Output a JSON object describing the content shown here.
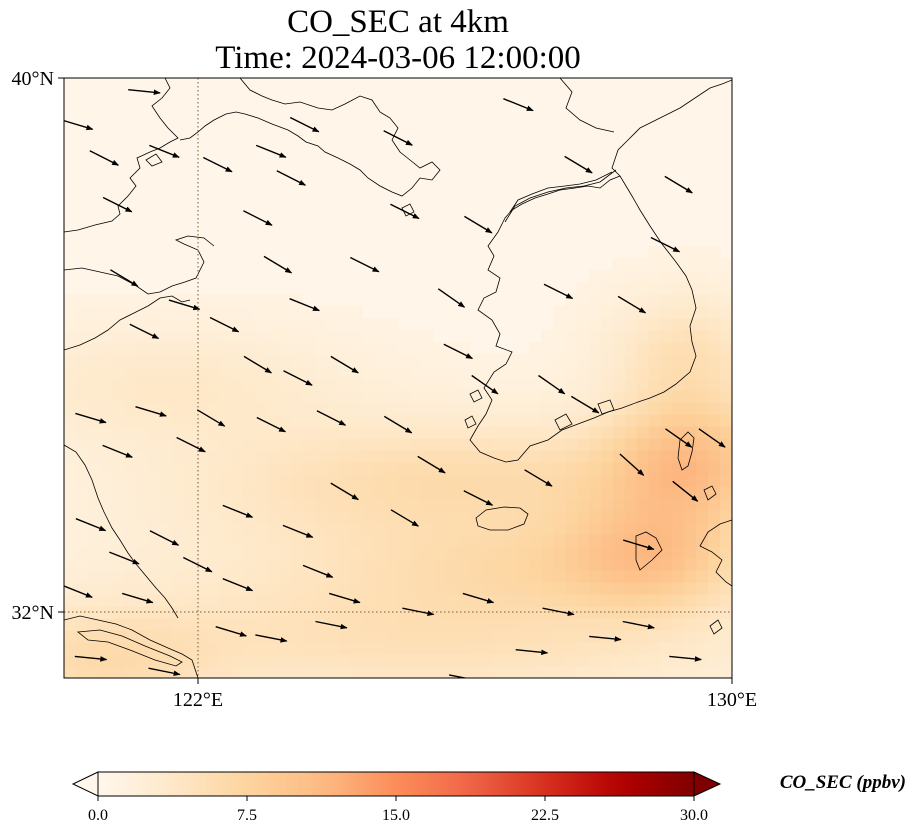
{
  "title": {
    "line1": "CO_SEC at 4km",
    "line2": "Time: 2024-03-06 12:00:00"
  },
  "map": {
    "lon_range": [
      120,
      130
    ],
    "lat_range": [
      31,
      40
    ],
    "lon_ticks": [
      {
        "value": 122,
        "label": "122°E"
      },
      {
        "value": 130,
        "label": "130°E"
      }
    ],
    "lat_ticks": [
      {
        "value": 40,
        "label": "40°N"
      },
      {
        "value": 32,
        "label": "32°N"
      }
    ],
    "gridlines": "dotted",
    "coastlines": true,
    "wind_vectors": true
  },
  "colorbar": {
    "label": "CO_SEC (ppbv)",
    "cmap": "OrRd",
    "min": 0.0,
    "max": 30.0,
    "extend": "both",
    "ticks": [
      "0.0",
      "7.5",
      "15.0",
      "22.5",
      "30.0"
    ],
    "colors": [
      "#fff7ec",
      "#fee8c8",
      "#fdd49e",
      "#fdbb84",
      "#fc8d59",
      "#ef6548",
      "#d7301f",
      "#b30000",
      "#7f0000"
    ]
  },
  "chart_data": {
    "type": "heatmap",
    "title": "CO_SEC at 4km",
    "subtitle": "Time: 2024-03-06 12:00:00",
    "xlabel": "",
    "ylabel": "",
    "xlim": [
      120,
      130
    ],
    "ylim": [
      31,
      40
    ],
    "x_ticks": [
      "122°E",
      "130°E"
    ],
    "y_ticks": [
      "32°N",
      "40°N"
    ],
    "colorbar_label": "CO_SEC (ppbv)",
    "colorbar_range": [
      0,
      30
    ],
    "background_value_ppbv": 1.0,
    "plumes": [
      {
        "lon": 129.4,
        "lat": 34.3,
        "value_ppbv": 9,
        "spread_lon": 0.9,
        "spread_lat": 0.7
      },
      {
        "lon": 128.8,
        "lat": 32.9,
        "value_ppbv": 7,
        "spread_lon": 0.9,
        "spread_lat": 0.6
      },
      {
        "lon": 129.3,
        "lat": 35.9,
        "value_ppbv": 5,
        "spread_lon": 0.8,
        "spread_lat": 0.6
      },
      {
        "lon": 126.5,
        "lat": 34.0,
        "value_ppbv": 5,
        "spread_lon": 2.5,
        "spread_lat": 0.6
      },
      {
        "lon": 127.3,
        "lat": 32.7,
        "value_ppbv": 4.5,
        "spread_lon": 2.0,
        "spread_lat": 0.5
      },
      {
        "lon": 125.5,
        "lat": 31.6,
        "value_ppbv": 5,
        "spread_lon": 3.5,
        "spread_lat": 0.7
      },
      {
        "lon": 121.5,
        "lat": 35.4,
        "value_ppbv": 3.5,
        "spread_lon": 1.8,
        "spread_lat": 0.6
      },
      {
        "lon": 120.5,
        "lat": 31.2,
        "value_ppbv": 5,
        "spread_lon": 1.2,
        "spread_lat": 0.6
      },
      {
        "lon": 124.0,
        "lat": 33.5,
        "value_ppbv": 3,
        "spread_lon": 2.5,
        "spread_lat": 1.0
      }
    ],
    "wind": [
      {
        "lon": 121.2,
        "lat": 39.8,
        "u": 1.0,
        "v": -0.1
      },
      {
        "lon": 121.5,
        "lat": 38.9,
        "u": 1.0,
        "v": -0.4
      },
      {
        "lon": 120.2,
        "lat": 39.3,
        "u": 1.0,
        "v": -0.3
      },
      {
        "lon": 120.6,
        "lat": 38.8,
        "u": 1.0,
        "v": -0.5
      },
      {
        "lon": 120.8,
        "lat": 38.1,
        "u": 1.0,
        "v": -0.5
      },
      {
        "lon": 120.9,
        "lat": 37.0,
        "u": 1.0,
        "v": -0.6
      },
      {
        "lon": 121.2,
        "lat": 36.2,
        "u": 1.0,
        "v": -0.5
      },
      {
        "lon": 121.8,
        "lat": 36.6,
        "u": 1.0,
        "v": -0.3
      },
      {
        "lon": 122.3,
        "lat": 38.7,
        "u": 1.0,
        "v": -0.5
      },
      {
        "lon": 123.1,
        "lat": 38.9,
        "u": 1.0,
        "v": -0.4
      },
      {
        "lon": 123.4,
        "lat": 38.5,
        "u": 1.0,
        "v": -0.5
      },
      {
        "lon": 122.9,
        "lat": 37.9,
        "u": 1.0,
        "v": -0.5
      },
      {
        "lon": 123.2,
        "lat": 37.2,
        "u": 1.0,
        "v": -0.6
      },
      {
        "lon": 123.6,
        "lat": 36.6,
        "u": 1.0,
        "v": -0.4
      },
      {
        "lon": 122.4,
        "lat": 36.3,
        "u": 1.0,
        "v": -0.5
      },
      {
        "lon": 122.9,
        "lat": 35.7,
        "u": 1.0,
        "v": -0.6
      },
      {
        "lon": 123.5,
        "lat": 35.5,
        "u": 1.0,
        "v": -0.5
      },
      {
        "lon": 124.2,
        "lat": 35.7,
        "u": 1.0,
        "v": -0.6
      },
      {
        "lon": 124.5,
        "lat": 37.2,
        "u": 1.0,
        "v": -0.5
      },
      {
        "lon": 125.1,
        "lat": 38.0,
        "u": 1.0,
        "v": -0.5
      },
      {
        "lon": 126.2,
        "lat": 37.8,
        "u": 1.0,
        "v": -0.6
      },
      {
        "lon": 125.8,
        "lat": 36.7,
        "u": 1.0,
        "v": -0.7
      },
      {
        "lon": 125.9,
        "lat": 35.9,
        "u": 1.0,
        "v": -0.5
      },
      {
        "lon": 126.3,
        "lat": 35.4,
        "u": 1.0,
        "v": -0.7
      },
      {
        "lon": 125.0,
        "lat": 34.8,
        "u": 1.0,
        "v": -0.6
      },
      {
        "lon": 124.0,
        "lat": 34.9,
        "u": 1.0,
        "v": -0.5
      },
      {
        "lon": 122.2,
        "lat": 34.9,
        "u": 1.0,
        "v": -0.6
      },
      {
        "lon": 121.3,
        "lat": 35.0,
        "u": 1.0,
        "v": -0.3
      },
      {
        "lon": 120.4,
        "lat": 34.9,
        "u": 1.0,
        "v": -0.3
      },
      {
        "lon": 120.8,
        "lat": 34.4,
        "u": 1.0,
        "v": -0.4
      },
      {
        "lon": 121.9,
        "lat": 34.5,
        "u": 1.0,
        "v": -0.5
      },
      {
        "lon": 123.1,
        "lat": 34.8,
        "u": 1.0,
        "v": -0.5
      },
      {
        "lon": 124.2,
        "lat": 33.8,
        "u": 1.0,
        "v": -0.6
      },
      {
        "lon": 125.5,
        "lat": 34.2,
        "u": 1.0,
        "v": -0.6
      },
      {
        "lon": 125.1,
        "lat": 33.4,
        "u": 1.0,
        "v": -0.6
      },
      {
        "lon": 126.2,
        "lat": 33.7,
        "u": 1.0,
        "v": -0.5
      },
      {
        "lon": 127.1,
        "lat": 34.0,
        "u": 1.0,
        "v": -0.6
      },
      {
        "lon": 128.5,
        "lat": 34.2,
        "u": 1.0,
        "v": -0.9
      },
      {
        "lon": 129.2,
        "lat": 34.6,
        "u": 1.0,
        "v": -0.7
      },
      {
        "lon": 129.7,
        "lat": 34.6,
        "u": 1.0,
        "v": -0.7
      },
      {
        "lon": 127.3,
        "lat": 35.4,
        "u": 1.0,
        "v": -0.7
      },
      {
        "lon": 127.8,
        "lat": 35.1,
        "u": 1.0,
        "v": -0.6
      },
      {
        "lon": 127.4,
        "lat": 36.8,
        "u": 1.0,
        "v": -0.5
      },
      {
        "lon": 128.5,
        "lat": 36.6,
        "u": 1.0,
        "v": -0.6
      },
      {
        "lon": 129.0,
        "lat": 37.5,
        "u": 1.0,
        "v": -0.5
      },
      {
        "lon": 129.2,
        "lat": 38.4,
        "u": 1.0,
        "v": -0.6
      },
      {
        "lon": 127.7,
        "lat": 38.7,
        "u": 1.0,
        "v": -0.6
      },
      {
        "lon": 126.8,
        "lat": 39.6,
        "u": 1.0,
        "v": -0.4
      },
      {
        "lon": 125.0,
        "lat": 39.1,
        "u": 1.0,
        "v": -0.5
      },
      {
        "lon": 123.6,
        "lat": 39.3,
        "u": 1.0,
        "v": -0.5
      },
      {
        "lon": 120.4,
        "lat": 33.3,
        "u": 1.0,
        "v": -0.4
      },
      {
        "lon": 120.9,
        "lat": 32.8,
        "u": 1.0,
        "v": -0.4
      },
      {
        "lon": 121.5,
        "lat": 33.1,
        "u": 1.0,
        "v": -0.5
      },
      {
        "lon": 122.0,
        "lat": 32.7,
        "u": 1.0,
        "v": -0.5
      },
      {
        "lon": 122.6,
        "lat": 33.5,
        "u": 1.0,
        "v": -0.4
      },
      {
        "lon": 123.5,
        "lat": 33.2,
        "u": 1.0,
        "v": -0.4
      },
      {
        "lon": 123.8,
        "lat": 32.6,
        "u": 1.0,
        "v": -0.4
      },
      {
        "lon": 122.6,
        "lat": 32.4,
        "u": 1.0,
        "v": -0.4
      },
      {
        "lon": 121.1,
        "lat": 32.2,
        "u": 1.0,
        "v": -0.3
      },
      {
        "lon": 120.2,
        "lat": 32.3,
        "u": 1.0,
        "v": -0.4
      },
      {
        "lon": 124.2,
        "lat": 32.2,
        "u": 1.0,
        "v": -0.3
      },
      {
        "lon": 125.3,
        "lat": 32.0,
        "u": 1.0,
        "v": -0.2
      },
      {
        "lon": 126.2,
        "lat": 32.2,
        "u": 1.0,
        "v": -0.3
      },
      {
        "lon": 127.4,
        "lat": 32.0,
        "u": 1.0,
        "v": -0.2
      },
      {
        "lon": 128.1,
        "lat": 31.6,
        "u": 1.0,
        "v": -0.1
      },
      {
        "lon": 129.3,
        "lat": 31.3,
        "u": 1.0,
        "v": -0.1
      },
      {
        "lon": 120.4,
        "lat": 31.3,
        "u": 1.0,
        "v": -0.1
      },
      {
        "lon": 121.5,
        "lat": 31.1,
        "u": 1.0,
        "v": -0.2
      },
      {
        "lon": 122.5,
        "lat": 31.7,
        "u": 1.0,
        "v": -0.3
      },
      {
        "lon": 123.1,
        "lat": 31.6,
        "u": 1.0,
        "v": -0.2
      },
      {
        "lon": 124.0,
        "lat": 31.8,
        "u": 1.0,
        "v": -0.2
      },
      {
        "lon": 126.0,
        "lat": 31.0,
        "u": 1.0,
        "v": -0.2
      },
      {
        "lon": 127.0,
        "lat": 31.4,
        "u": 1.0,
        "v": -0.1
      },
      {
        "lon": 128.6,
        "lat": 31.8,
        "u": 1.0,
        "v": -0.2
      },
      {
        "lon": 128.6,
        "lat": 33.0,
        "u": 1.0,
        "v": -0.3
      },
      {
        "lon": 129.3,
        "lat": 33.8,
        "u": 1.0,
        "v": -0.8
      }
    ]
  }
}
